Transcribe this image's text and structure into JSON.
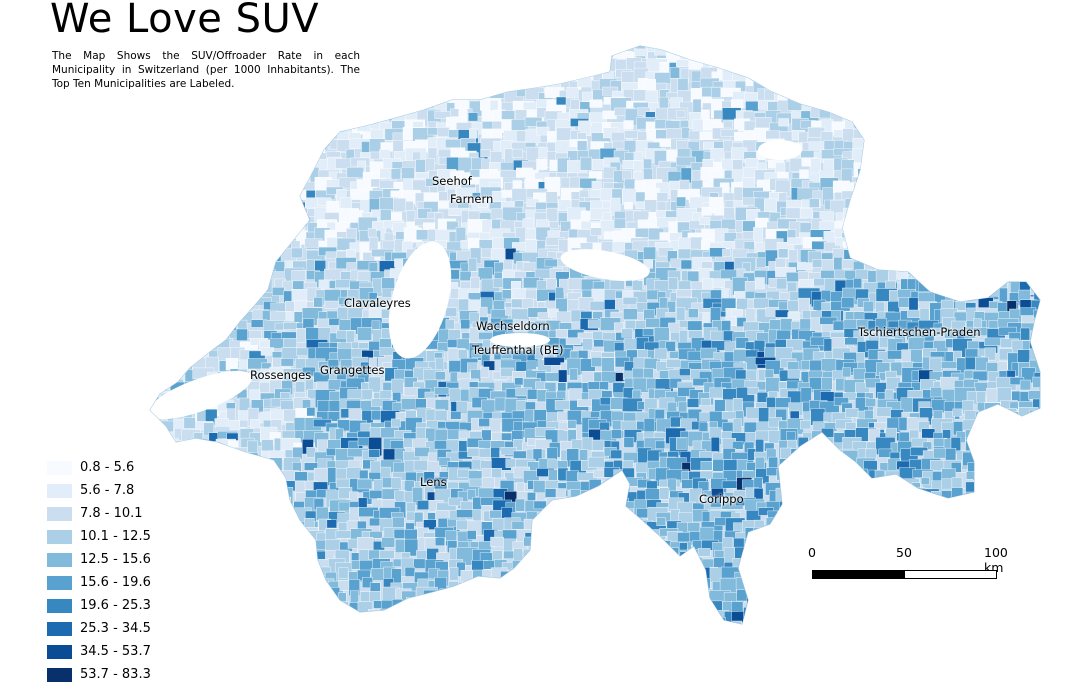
{
  "title": "We Love SUV",
  "subtitle": "The Map Shows the SUV/Offroader Rate in each Municipality in Switzerland (per 1000 Inhabitants). The Top Ten Municipalities are Labeled.",
  "legend": [
    {
      "label": "0.8 - 5.6",
      "color": "#f7fbff"
    },
    {
      "label": "5.6 - 7.8",
      "color": "#e1edf8"
    },
    {
      "label": "7.8 - 10.1",
      "color": "#cadef0"
    },
    {
      "label": "10.1 - 12.5",
      "color": "#abcfe6"
    },
    {
      "label": "12.5 - 15.6",
      "color": "#82badb"
    },
    {
      "label": "15.6 - 19.6",
      "color": "#59a1cf"
    },
    {
      "label": "19.6 - 25.3",
      "color": "#3787c0"
    },
    {
      "label": "25.3 - 34.5",
      "color": "#1c6aaf"
    },
    {
      "label": "34.5 - 53.7",
      "color": "#0b4d94"
    },
    {
      "label": "53.7 - 83.3",
      "color": "#08306b"
    }
  ],
  "places": [
    {
      "name": "Seehof"
    },
    {
      "name": "Farnern"
    },
    {
      "name": "Clavaleyres"
    },
    {
      "name": "Wachseldorn"
    },
    {
      "name": "Teuffenthal (BE)"
    },
    {
      "name": "Rossenges"
    },
    {
      "name": "Grangettes"
    },
    {
      "name": "Lens"
    },
    {
      "name": "Corippo"
    },
    {
      "name": "Tschiertschen-Praden"
    }
  ],
  "scalebar": {
    "ticks": [
      "0",
      "50",
      "100 km"
    ]
  }
}
